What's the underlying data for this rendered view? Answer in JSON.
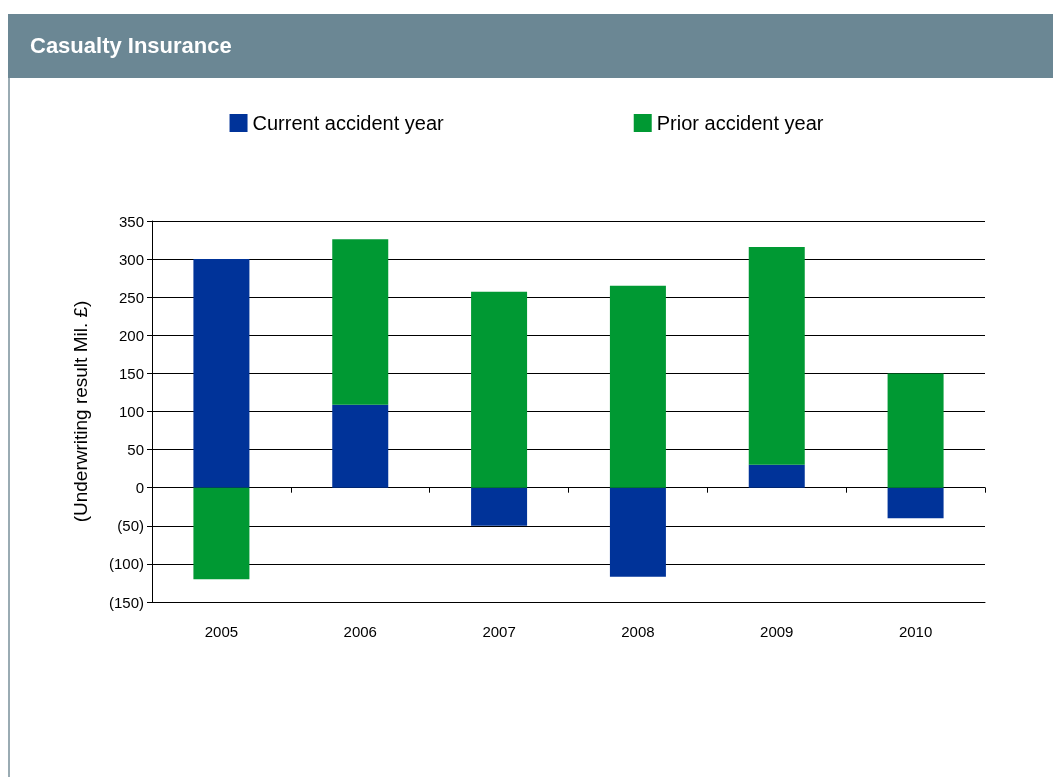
{
  "chart_data": {
    "type": "bar",
    "title": "Casualty Insurance",
    "ylabel": "(Underwriting result Mil. £)",
    "categories": [
      "2005",
      "2006",
      "2007",
      "2008",
      "2009",
      "2010"
    ],
    "series": [
      {
        "name": "Current accident year",
        "color": "#003399",
        "values": [
          300,
          109,
          -50,
          -117,
          30,
          -40
        ]
      },
      {
        "name": "Prior accident year",
        "color": "#009933",
        "values": [
          -120,
          217,
          257,
          265,
          286,
          150
        ]
      }
    ],
    "stacked": true,
    "ylim": [
      -150,
      350
    ],
    "yticks": [
      {
        "value": -150,
        "label": "(150)"
      },
      {
        "value": -100,
        "label": "(100)"
      },
      {
        "value": -50,
        "label": "(50)"
      },
      0,
      50,
      100,
      150,
      200,
      250,
      300,
      350
    ],
    "grid": "y",
    "legend": "top"
  }
}
